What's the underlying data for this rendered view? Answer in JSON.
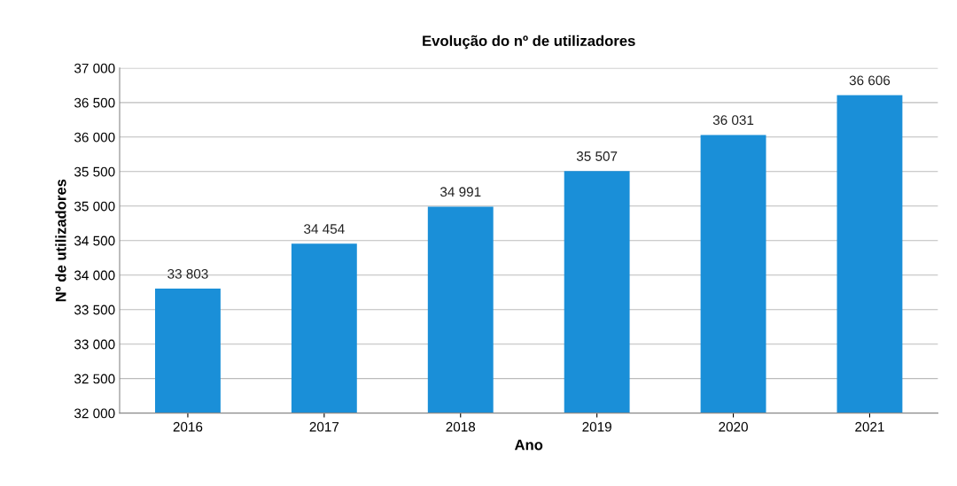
{
  "chart_data": {
    "type": "bar",
    "title": "Evolução do nº de utilizadores",
    "xlabel": "Ano",
    "ylabel": "Nº de utilizadores",
    "categories": [
      "2016",
      "2017",
      "2018",
      "2019",
      "2020",
      "2021"
    ],
    "values": [
      33803,
      34454,
      34991,
      35507,
      36031,
      36606
    ],
    "value_labels": [
      "33 803",
      "34 454",
      "34 991",
      "35 507",
      "36 031",
      "36 606"
    ],
    "color": "#1a8fd8",
    "ylim": [
      32000,
      37000
    ],
    "yticks": [
      {
        "value": 32000,
        "label": "32 000"
      },
      {
        "value": 32500,
        "label": "32 500"
      },
      {
        "value": 33000,
        "label": "33 000"
      },
      {
        "value": 33500,
        "label": "33 500"
      },
      {
        "value": 34000,
        "label": "34 000"
      },
      {
        "value": 34500,
        "label": "34 500"
      },
      {
        "value": 35000,
        "label": "35 000"
      },
      {
        "value": 35500,
        "label": "35 500"
      },
      {
        "value": 36000,
        "label": "36 000"
      },
      {
        "value": 36500,
        "label": "36 500"
      },
      {
        "value": 37000,
        "label": "37 000"
      }
    ],
    "grid": "y"
  }
}
